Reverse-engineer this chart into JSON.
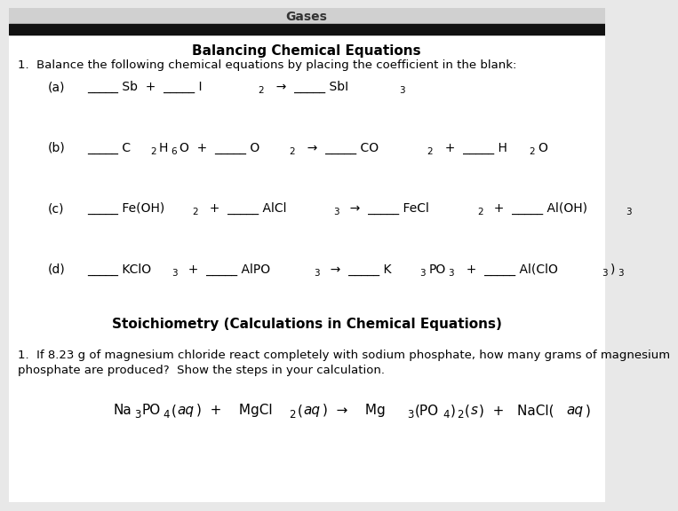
{
  "bg_color": "#ffffff",
  "page_bg": "#e8e8e8",
  "border_color": "#111111",
  "header_text": "Gases",
  "title": "Balancing Chemical Equations",
  "subtitle": "1.  Balance the following chemical equations by placing the coefficient in the blank:",
  "stoich_title": "Stoichiometry (Calculations in Chemical Equations)",
  "stoich_q1": "1.  If 8.23 g of magnesium chloride react completely with sodium phosphate, how many grams of magnesium",
  "stoich_q2": "phosphate are produced?  Show the steps in your calculation.",
  "font_size_body": 9.5,
  "font_size_eq": 10,
  "font_size_sub": 7.5,
  "font_size_title": 11,
  "font_size_stoich_eq": 11
}
